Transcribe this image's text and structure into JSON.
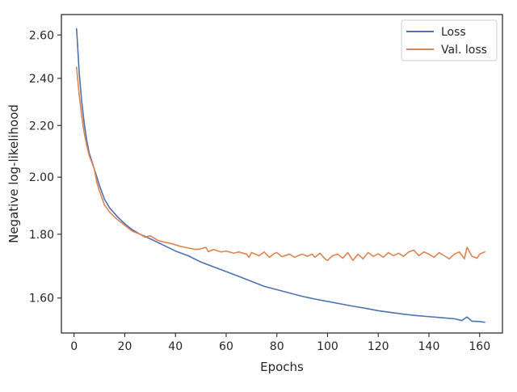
{
  "chart_data": {
    "type": "line",
    "title": "",
    "xlabel": "Epochs",
    "ylabel": "Negative log-likelihood",
    "xlim": [
      -5,
      169
    ],
    "ylim": [
      1.5,
      2.7
    ],
    "y_scale": "log",
    "grid": false,
    "legend_position": "top-right",
    "xticks": [
      0,
      20,
      40,
      60,
      80,
      100,
      120,
      140,
      160
    ],
    "xtick_labels": [
      "0",
      "20",
      "40",
      "60",
      "80",
      "100",
      "120",
      "140",
      "160"
    ],
    "yticks": [
      1.6,
      1.8,
      2.0,
      2.2,
      2.4,
      2.6
    ],
    "ytick_labels": [
      "1.60",
      "1.80",
      "2.00",
      "2.20",
      "2.40",
      "2.60"
    ],
    "series": [
      {
        "name": "Loss",
        "color": "#4c72b0",
        "points": [
          [
            1,
            2.63
          ],
          [
            2,
            2.43
          ],
          [
            3,
            2.3
          ],
          [
            4,
            2.21
          ],
          [
            5,
            2.14
          ],
          [
            6,
            2.09
          ],
          [
            8,
            2.03
          ],
          [
            9,
            2.0
          ],
          [
            10,
            1.97
          ],
          [
            12,
            1.92
          ],
          [
            14,
            1.89
          ],
          [
            17,
            1.86
          ],
          [
            20,
            1.835
          ],
          [
            23,
            1.815
          ],
          [
            26,
            1.8
          ],
          [
            30,
            1.785
          ],
          [
            35,
            1.765
          ],
          [
            40,
            1.745
          ],
          [
            45,
            1.73
          ],
          [
            50,
            1.71
          ],
          [
            55,
            1.695
          ],
          [
            60,
            1.68
          ],
          [
            65,
            1.665
          ],
          [
            70,
            1.65
          ],
          [
            75,
            1.635
          ],
          [
            80,
            1.625
          ],
          [
            85,
            1.615
          ],
          [
            90,
            1.605
          ],
          [
            95,
            1.597
          ],
          [
            100,
            1.59
          ],
          [
            105,
            1.583
          ],
          [
            110,
            1.576
          ],
          [
            115,
            1.57
          ],
          [
            120,
            1.563
          ],
          [
            125,
            1.558
          ],
          [
            130,
            1.553
          ],
          [
            135,
            1.549
          ],
          [
            140,
            1.546
          ],
          [
            145,
            1.543
          ],
          [
            150,
            1.54
          ],
          [
            153,
            1.535
          ],
          [
            155,
            1.545
          ],
          [
            157,
            1.533
          ],
          [
            160,
            1.532
          ],
          [
            162,
            1.53
          ]
        ]
      },
      {
        "name": "Val. loss",
        "color": "#dd8452",
        "points": [
          [
            1,
            2.45
          ],
          [
            2,
            2.33
          ],
          [
            3,
            2.24
          ],
          [
            4,
            2.17
          ],
          [
            5,
            2.12
          ],
          [
            6,
            2.08
          ],
          [
            8,
            2.03
          ],
          [
            9,
            1.98
          ],
          [
            10,
            1.95
          ],
          [
            12,
            1.9
          ],
          [
            14,
            1.875
          ],
          [
            17,
            1.85
          ],
          [
            20,
            1.83
          ],
          [
            23,
            1.81
          ],
          [
            26,
            1.8
          ],
          [
            28,
            1.79
          ],
          [
            30,
            1.795
          ],
          [
            33,
            1.78
          ],
          [
            35,
            1.775
          ],
          [
            38,
            1.77
          ],
          [
            40,
            1.765
          ],
          [
            42,
            1.76
          ],
          [
            45,
            1.755
          ],
          [
            48,
            1.75
          ],
          [
            50,
            1.752
          ],
          [
            52,
            1.757
          ],
          [
            53,
            1.743
          ],
          [
            55,
            1.75
          ],
          [
            58,
            1.742
          ],
          [
            60,
            1.745
          ],
          [
            63,
            1.738
          ],
          [
            65,
            1.742
          ],
          [
            68,
            1.735
          ],
          [
            69,
            1.725
          ],
          [
            70,
            1.74
          ],
          [
            73,
            1.73
          ],
          [
            75,
            1.742
          ],
          [
            77,
            1.725
          ],
          [
            79,
            1.737
          ],
          [
            80,
            1.74
          ],
          [
            82,
            1.727
          ],
          [
            85,
            1.735
          ],
          [
            87,
            1.725
          ],
          [
            90,
            1.735
          ],
          [
            92,
            1.728
          ],
          [
            94,
            1.735
          ],
          [
            95,
            1.725
          ],
          [
            97,
            1.738
          ],
          [
            99,
            1.72
          ],
          [
            100,
            1.715
          ],
          [
            102,
            1.73
          ],
          [
            104,
            1.735
          ],
          [
            106,
            1.722
          ],
          [
            108,
            1.74
          ],
          [
            110,
            1.715
          ],
          [
            112,
            1.735
          ],
          [
            114,
            1.72
          ],
          [
            116,
            1.74
          ],
          [
            118,
            1.728
          ],
          [
            120,
            1.736
          ],
          [
            122,
            1.725
          ],
          [
            124,
            1.74
          ],
          [
            126,
            1.73
          ],
          [
            128,
            1.738
          ],
          [
            130,
            1.728
          ],
          [
            132,
            1.742
          ],
          [
            134,
            1.748
          ],
          [
            136,
            1.73
          ],
          [
            138,
            1.742
          ],
          [
            140,
            1.735
          ],
          [
            142,
            1.725
          ],
          [
            144,
            1.74
          ],
          [
            146,
            1.73
          ],
          [
            148,
            1.72
          ],
          [
            150,
            1.735
          ],
          [
            152,
            1.742
          ],
          [
            154,
            1.72
          ],
          [
            155,
            1.757
          ],
          [
            157,
            1.728
          ],
          [
            159,
            1.722
          ],
          [
            160,
            1.735
          ],
          [
            162,
            1.742
          ]
        ]
      }
    ]
  }
}
